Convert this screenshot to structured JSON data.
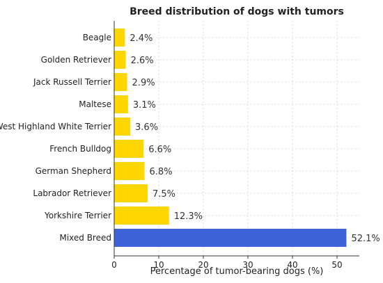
{
  "chart_data": {
    "type": "bar",
    "orientation": "horizontal",
    "title": "Breed distribution of dogs with tumors",
    "xlabel": "Percentage of tumor-bearing dogs (%)",
    "ylabel": "",
    "xlim": [
      0,
      55
    ],
    "xticks": [
      0,
      10,
      20,
      30,
      40,
      50
    ],
    "grid": true,
    "categories": [
      "Mixed Breed",
      "Yorkshire Terrier",
      "Labrador Retriever",
      "German Shepherd",
      "French Bulldog",
      "West Highland White Terrier",
      "Maltese",
      "Jack Russell Terrier",
      "Golden Retriever",
      "Beagle"
    ],
    "values": [
      52.1,
      12.3,
      7.5,
      6.8,
      6.6,
      3.6,
      3.1,
      2.9,
      2.6,
      2.4
    ],
    "value_labels": [
      "52.1%",
      "12.3%",
      "7.5%",
      "6.8%",
      "6.6%",
      "3.6%",
      "3.1%",
      "2.9%",
      "2.6%",
      "2.4%"
    ],
    "colors": {
      "highlight": "#3e63d8",
      "default": "#ffd600"
    },
    "highlight_index": 0
  }
}
